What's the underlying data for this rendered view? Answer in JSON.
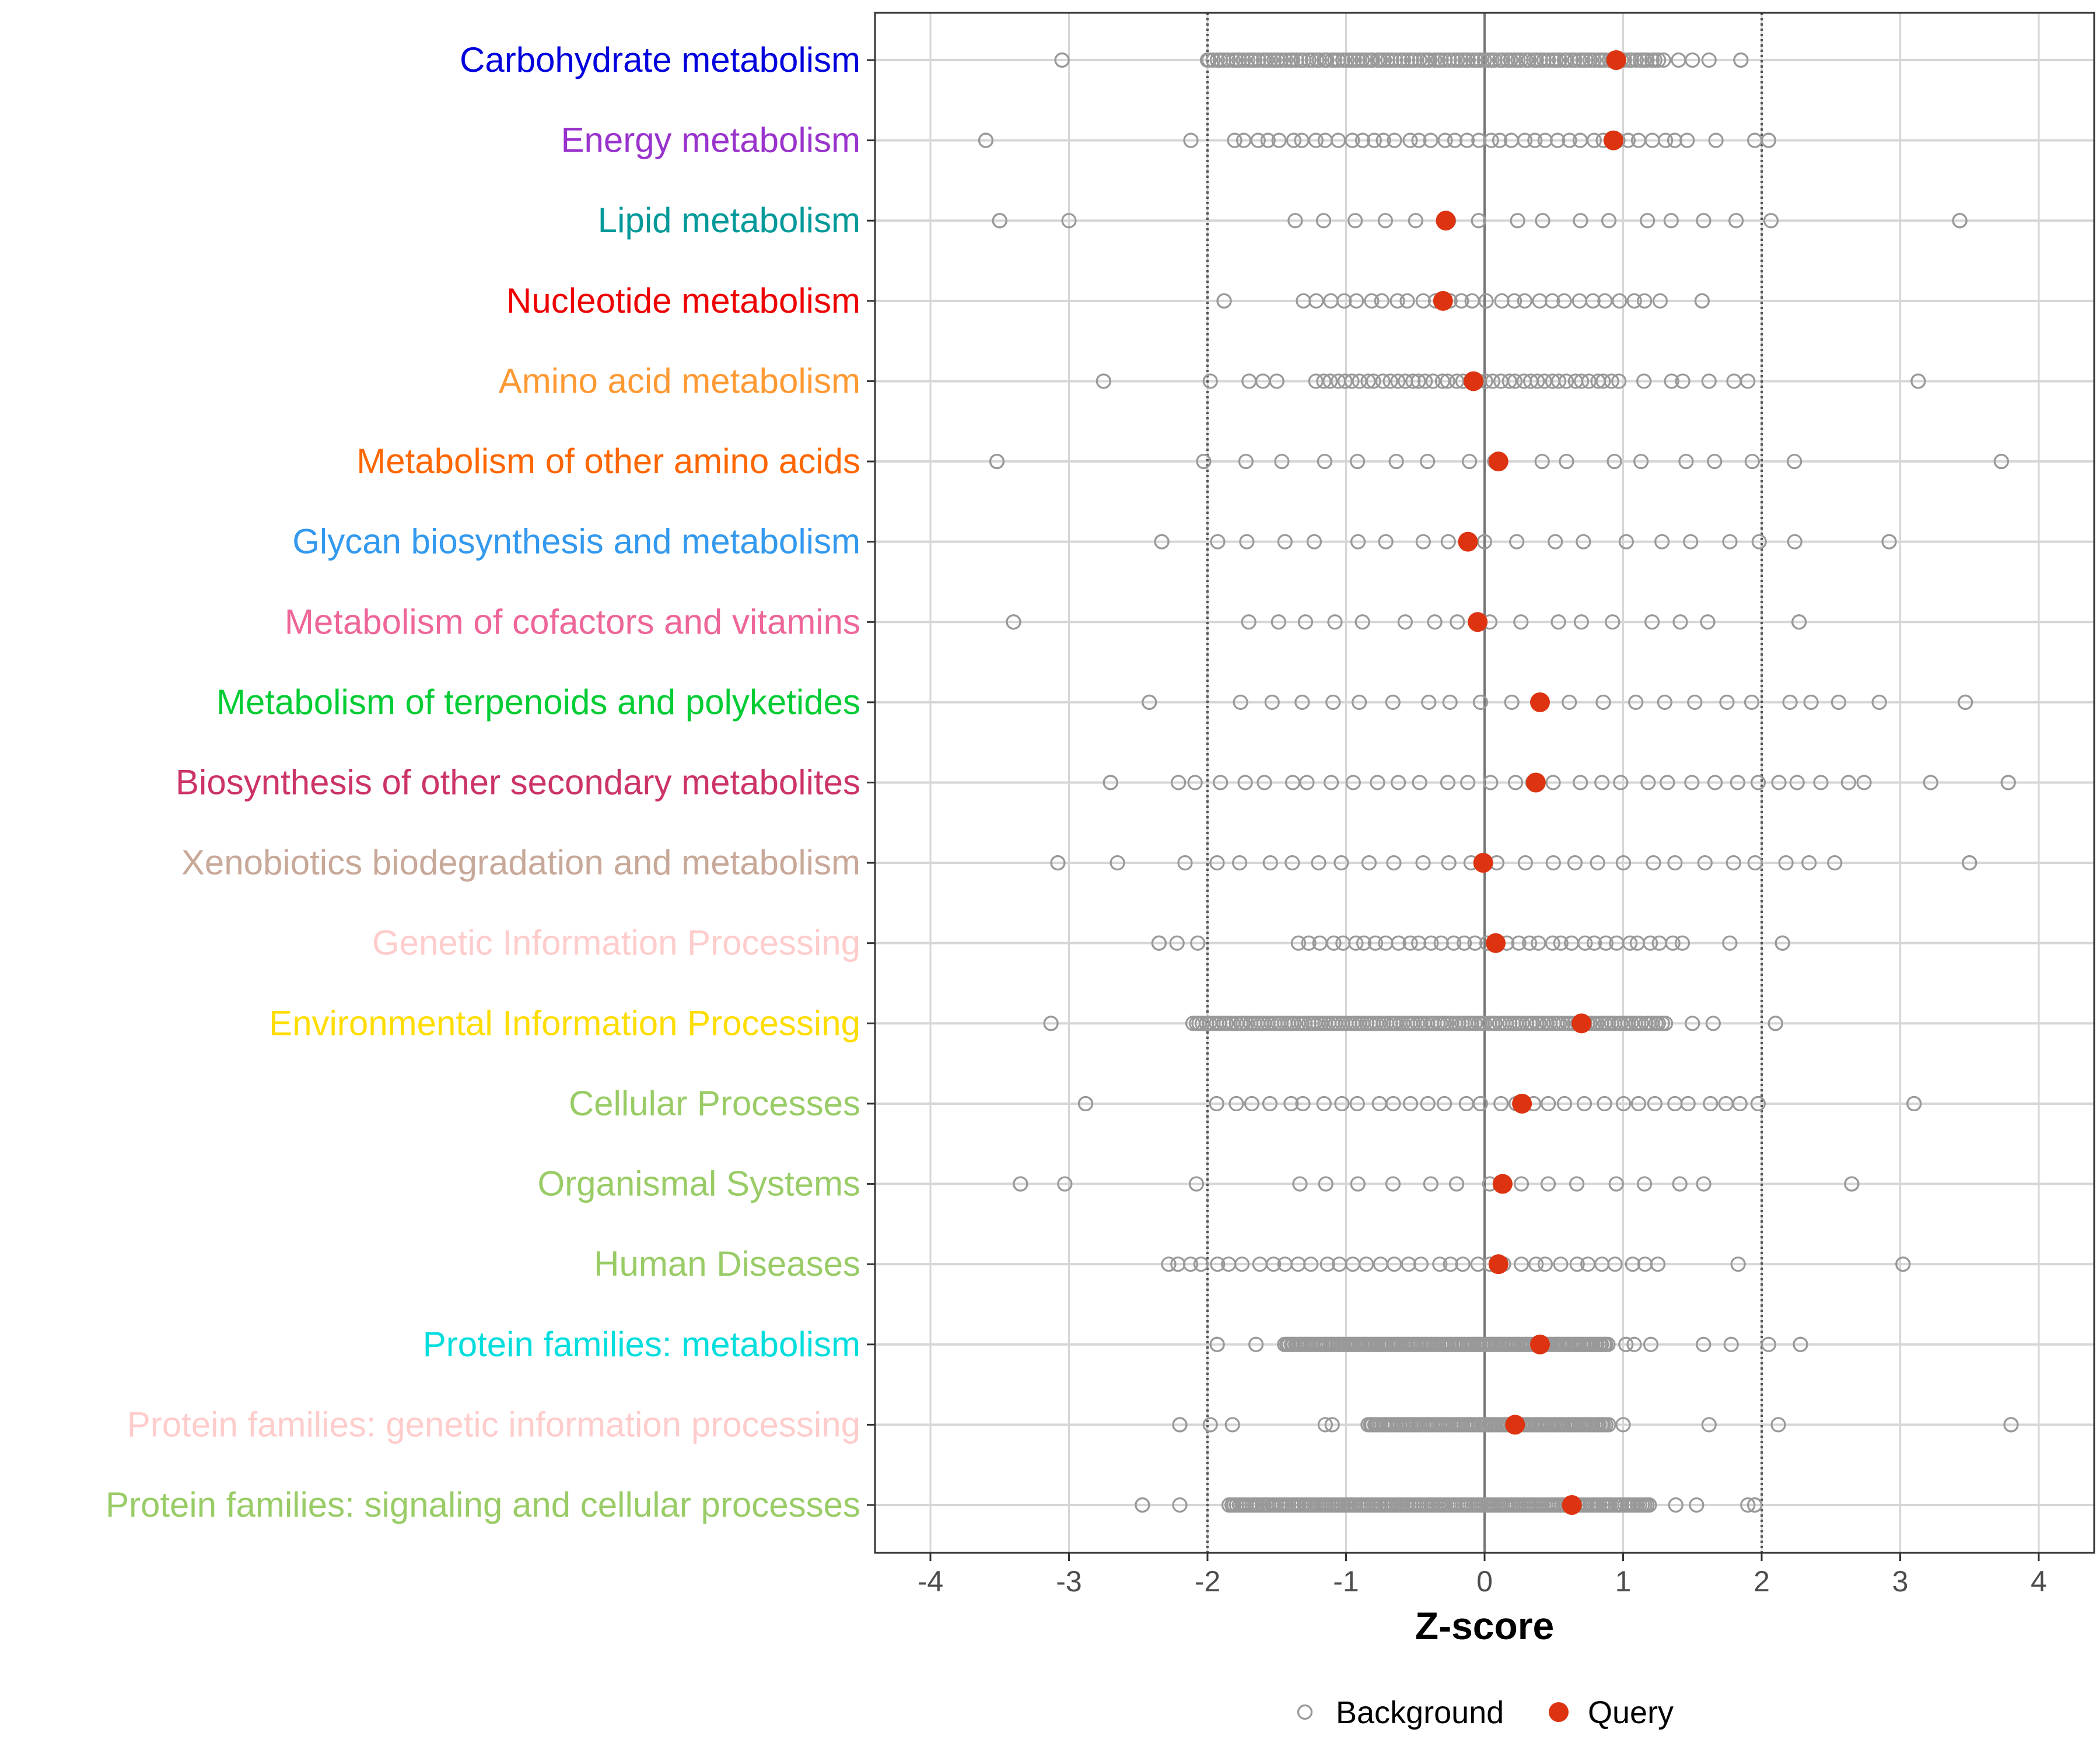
{
  "chart_data": {
    "type": "scatter",
    "title": "",
    "xlabel": "Z-score",
    "ylabel": "",
    "xlim": [
      -4.4,
      4.4
    ],
    "xticks": [
      -4,
      -3,
      -2,
      -1,
      0,
      1,
      2,
      3,
      4
    ],
    "xtick_labels": [
      "-4",
      "-3",
      "-2",
      "-1",
      "0",
      "1",
      "2",
      "3",
      "4"
    ],
    "reference_lines": [
      -2,
      2
    ],
    "zero_line": 0,
    "legend": {
      "position": "bottom",
      "entries": [
        {
          "name": "Background",
          "marker": "open-circle",
          "color": "#999999"
        },
        {
          "name": "Query",
          "marker": "filled-circle",
          "color": "#dd3311"
        }
      ]
    },
    "categories": [
      {
        "name": "Carbohydrate metabolism",
        "color": "#0000dd",
        "query": 0.95,
        "background_range": [
          -3.05,
          1.85
        ],
        "background_dense": [
          -2.0,
          1.3
        ],
        "background_count": 120,
        "background_outliers": [
          -3.05,
          -2.0,
          1.4,
          1.5,
          1.62,
          1.85
        ]
      },
      {
        "name": "Energy metabolism",
        "color": "#9933cc",
        "query": 0.93,
        "background_range": [
          -3.6,
          2.05
        ],
        "background_dense": [
          -1.85,
          1.5
        ],
        "background_count": 40,
        "background_outliers": [
          -3.6,
          -2.12,
          1.67,
          1.95,
          2.05
        ]
      },
      {
        "name": "Lipid metabolism",
        "color": "#009999",
        "query": -0.28,
        "background_range": [
          -3.5,
          3.43
        ],
        "background_dense": [
          -1.53,
          2.2
        ],
        "background_count": 16,
        "background_outliers": [
          -3.5,
          -3.0,
          3.43
        ]
      },
      {
        "name": "Nucleotide metabolism",
        "color": "#ee0000",
        "query": -0.3,
        "background_range": [
          -1.88,
          1.57
        ],
        "background_dense": [
          -1.35,
          1.3
        ],
        "background_count": 28,
        "background_outliers": [
          -1.88,
          1.57
        ]
      },
      {
        "name": "Amino acid metabolism",
        "color": "#ff9933",
        "query": -0.08,
        "background_range": [
          -2.75,
          3.13
        ],
        "background_dense": [
          -1.25,
          1.0
        ],
        "background_count": 42,
        "background_outliers": [
          -2.75,
          -1.98,
          -1.7,
          -1.6,
          -1.5,
          1.15,
          1.35,
          1.43,
          1.62,
          1.8,
          1.9,
          3.13
        ]
      },
      {
        "name": "Metabolism of other amino acids",
        "color": "#ff6600",
        "query": 0.1,
        "background_range": [
          -3.52,
          3.73
        ],
        "background_dense": [
          -2.12,
          2.33
        ],
        "background_count": 17,
        "background_outliers": [
          -3.52,
          3.73
        ]
      },
      {
        "name": "Glycan biosynthesis and metabolism",
        "color": "#3399ee",
        "query": -0.12,
        "background_range": [
          -2.33,
          2.92
        ],
        "background_dense": [
          -2.05,
          2.35
        ],
        "background_count": 18,
        "background_outliers": [
          -2.33,
          2.92
        ]
      },
      {
        "name": "Metabolism of cofactors and vitamins",
        "color": "#ee6699",
        "query": -0.05,
        "background_range": [
          -3.4,
          2.27
        ],
        "background_dense": [
          -1.85,
          1.75
        ],
        "background_count": 16,
        "background_outliers": [
          -3.4,
          2.27
        ]
      },
      {
        "name": "Metabolism of terpenoids and polyketides",
        "color": "#00cc33",
        "query": 0.4,
        "background_range": [
          -2.42,
          3.47
        ],
        "background_dense": [
          -1.85,
          2.92
        ],
        "background_count": 22,
        "background_outliers": [
          -2.42,
          3.47
        ]
      },
      {
        "name": "Biosynthesis of other secondary metabolites",
        "color": "#cc3366",
        "query": 0.37,
        "background_range": [
          -2.7,
          3.78
        ],
        "background_dense": [
          -2.3,
          2.85
        ],
        "background_count": 32,
        "background_outliers": [
          -2.7,
          3.22,
          3.78
        ]
      },
      {
        "name": "Xenobiotics biodegradation and metabolism",
        "color": "#c8a898",
        "query": -0.01,
        "background_range": [
          -3.08,
          3.5
        ],
        "background_dense": [
          -2.22,
          2.62
        ],
        "background_count": 26,
        "background_outliers": [
          -3.08,
          -2.65,
          3.5
        ]
      },
      {
        "name": "Genetic Information Processing",
        "color": "#ffcccc",
        "query": 0.08,
        "background_range": [
          -2.35,
          2.15
        ],
        "background_dense": [
          -1.38,
          1.47
        ],
        "background_count": 36,
        "background_outliers": [
          -2.35,
          -2.22,
          -2.07,
          1.77,
          2.15
        ]
      },
      {
        "name": "Environmental Information Processing",
        "color": "#ffdd00",
        "query": 0.7,
        "background_range": [
          -3.13,
          2.1
        ],
        "background_dense": [
          -2.12,
          1.32
        ],
        "background_count": 140,
        "background_outliers": [
          -3.13,
          1.5,
          1.65,
          2.1
        ]
      },
      {
        "name": "Cellular Processes",
        "color": "#99cc66",
        "query": 0.27,
        "background_range": [
          -2.88,
          3.1
        ],
        "background_dense": [
          -1.98,
          2.05
        ],
        "background_count": 32,
        "background_outliers": [
          -2.88,
          3.1
        ]
      },
      {
        "name": "Organismal Systems",
        "color": "#99cc66",
        "query": 0.13,
        "background_range": [
          -3.35,
          2.65
        ],
        "background_dense": [
          -1.45,
          1.72
        ],
        "background_count": 14,
        "background_outliers": [
          -3.35,
          -3.03,
          -2.08,
          2.65
        ]
      },
      {
        "name": "Human Diseases",
        "color": "#99cc66",
        "query": 0.1,
        "background_range": [
          -2.28,
          3.02
        ],
        "background_dense": [
          -2.28,
          1.3
        ],
        "background_count": 36,
        "background_outliers": [
          1.83,
          3.02
        ]
      },
      {
        "name": "Protein families: metabolism",
        "color": "#00dddd",
        "query": 0.4,
        "background_range": [
          -1.93,
          2.28
        ],
        "background_dense": [
          -1.45,
          0.9
        ],
        "background_count": 150,
        "background_outliers": [
          -1.93,
          -1.65,
          1.02,
          1.08,
          1.2,
          1.58,
          1.78,
          2.05,
          2.28
        ]
      },
      {
        "name": "Protein families: genetic information processing",
        "color": "#ffcccc",
        "query": 0.22,
        "background_range": [
          -2.2,
          3.8
        ],
        "background_dense": [
          -0.85,
          0.9
        ],
        "background_count": 110,
        "background_outliers": [
          -2.2,
          -1.98,
          -1.82,
          -1.15,
          -1.1,
          1.0,
          1.62,
          2.12,
          3.8
        ]
      },
      {
        "name": "Protein families: signaling and cellular processes",
        "color": "#99cc66",
        "query": 0.63,
        "background_range": [
          -2.47,
          1.95
        ],
        "background_dense": [
          -1.85,
          1.2
        ],
        "background_count": 170,
        "background_outliers": [
          -2.47,
          -2.2,
          1.38,
          1.53,
          1.9,
          1.95
        ]
      }
    ]
  }
}
